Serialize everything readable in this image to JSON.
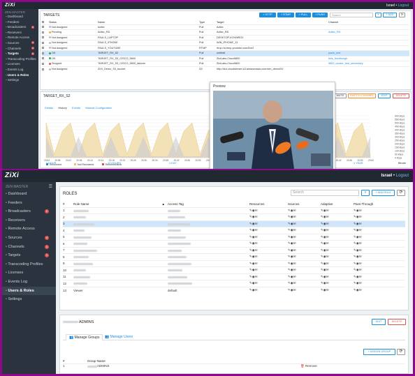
{
  "shotA": {
    "brand": "ZiXi",
    "sidebar_header": "ZEN MASTER",
    "user": "Israel",
    "logout": "Logout",
    "sidebar": [
      {
        "label": "Dashboard"
      },
      {
        "label": "Feeders"
      },
      {
        "label": "Broadcasters",
        "badge": "2"
      },
      {
        "label": "Receivers"
      },
      {
        "label": "Remote Access"
      },
      {
        "label": "Sources",
        "badge": "4"
      },
      {
        "label": "Channels",
        "badge": "1"
      },
      {
        "label": "Targets",
        "badge": "1"
      },
      {
        "label": "Transcoding Profiles"
      },
      {
        "label": "Licenses"
      },
      {
        "label": "Events Log"
      },
      {
        "label": "Users & Roles"
      },
      {
        "label": "Settings"
      }
    ],
    "targets_title": "TARGETS",
    "buttons": {
      "http": "+ HTTP",
      "rtmp": "+ RTMP",
      "pull": "+ PULL",
      "push": "+ PUSH",
      "add": "+ ADD"
    },
    "search_placeholder": "Search",
    "columns": [
      "Status",
      "Name",
      "Type",
      "Target",
      "Channel"
    ],
    "rows": [
      {
        "status": "Not Assigned",
        "name": "Adtec",
        "type": "Pull",
        "target": "Adtec",
        "channel": ""
      },
      {
        "status": "Pending",
        "name": "Adtec_RD",
        "type": "Pull",
        "target": "Adtec_RD",
        "channel": "Adtec_RD"
      },
      {
        "status": "Not Assigned",
        "name": "FAULS_LAPTOP",
        "type": "Pull",
        "target": "DESKTOP-KOVMRO0",
        "channel": ""
      },
      {
        "status": "Not Assigned",
        "name": "FAULS_IPHONE",
        "type": "Pull",
        "target": "WIN_IPHONE_13",
        "channel": ""
      },
      {
        "status": "Not Assigned",
        "name": "FAULS_YOUTUBE",
        "type": "RTMP",
        "target": "rtmp://a.rtmp.youtube.com/live2",
        "channel": ""
      },
      {
        "status": "OK",
        "name": "TARGET_RX_S2",
        "type": "Pull",
        "target": "unifiedI",
        "channel": "pauls_test"
      },
      {
        "status": "OK",
        "name": "TARGET_RX_S3_CISCO_5800",
        "type": "Pull",
        "target": "ZixiLabs-Cisco5800",
        "channel": "fulls_fixedhough"
      },
      {
        "status": "Stopped",
        "name": "TARGET_RX_S3_CISCO_5800_failover",
        "type": "Pull",
        "target": "ZixiLabs-Cisco5800",
        "channel": "5800_cluster_test_secondary"
      },
      {
        "status": "Not Assigned",
        "name": "ZIXI_Demo_S3_bucket",
        "type": "S3",
        "target": "http://zixi.cloudstream.s3.amazonaws.com/zen_demo03/",
        "channel": ""
      }
    ],
    "detail": {
      "title": "TARGET_RX_S2",
      "buttons": {
        "mute": "MUTE",
        "switch": "SWITCH CHANNEL",
        "edit": "EDIT",
        "delete": "DELETE"
      },
      "tabs": [
        "Details",
        "History",
        "Events",
        "Manual Configuration"
      ],
      "preview_label": "Preview",
      "y_ticks": [
        "600 kbps",
        "550 kbps",
        "500 kbps",
        "450 kbps",
        "400 kbps",
        "350 kbps",
        "300 kbps",
        "250 kbps",
        "200 kbps",
        "150 kbps",
        "100 kbps",
        "50 kbps",
        "0 kbps"
      ],
      "x_ticks": [
        "19:54",
        "19:58",
        "20:02",
        "20:06",
        "20:10",
        "20:14",
        "20:18",
        "20:22",
        "20:26",
        "20:30",
        "20:34",
        "20:38",
        "20:42",
        "20:46",
        "20:50",
        "20:54",
        "20:58",
        "20:02",
        "20:06",
        "20:10",
        "20:14",
        "20:18",
        "20:22",
        "20:26",
        "20:30",
        "20:34",
        "20:38",
        "20:42",
        "20:46",
        "20:50",
        "20:54"
      ],
      "legend": [
        "Recovered",
        "Not Recovered",
        "Reconnections"
      ],
      "ranges": [
        "1 HOUR",
        "12 HOURS",
        "1 DAY",
        "1 WEEK",
        "1 MONTH",
        "1 YEAR"
      ],
      "bitrate_label": "Bitrate"
    }
  },
  "shotB": {
    "brand": "ZiXi",
    "sidebar_header": "ZEN MASTER",
    "user": "Israel",
    "logout": "Logout",
    "sidebar": [
      {
        "label": "Dashboard"
      },
      {
        "label": "Feeders"
      },
      {
        "label": "Broadcasters",
        "badge": "2"
      },
      {
        "label": "Receivers"
      },
      {
        "label": "Remote Access"
      },
      {
        "label": "Sources",
        "badge": "4"
      },
      {
        "label": "Channels",
        "badge": "1"
      },
      {
        "label": "Targets",
        "badge": "1"
      },
      {
        "label": "Transcoding Profiles"
      },
      {
        "label": "Licenses"
      },
      {
        "label": "Events Log"
      },
      {
        "label": "Users & Roles"
      },
      {
        "label": "Settings"
      }
    ],
    "roles_title": "ROLES",
    "search_placeholder": "Search",
    "add_role": "+ ADD ROLE",
    "columns": [
      "#",
      "Role Name",
      "Access Tag",
      "Resources",
      "Sources",
      "Adaptive",
      "Pass-Through"
    ],
    "rows": [
      {
        "n": "1",
        "name": "",
        "tag": ""
      },
      {
        "n": "2",
        "name": "",
        "tag": ""
      },
      {
        "n": "3",
        "name": "",
        "tag": ""
      },
      {
        "n": "4",
        "name": "",
        "tag": ""
      },
      {
        "n": "5",
        "name": "",
        "tag": ""
      },
      {
        "n": "6",
        "name": "",
        "tag": ""
      },
      {
        "n": "7",
        "name": "",
        "tag": ""
      },
      {
        "n": "8",
        "name": "",
        "tag": ""
      },
      {
        "n": "9",
        "name": "",
        "tag": ""
      },
      {
        "n": "10",
        "name": "",
        "tag": ""
      },
      {
        "n": "11",
        "name": "",
        "tag": ""
      },
      {
        "n": "12",
        "name": "",
        "tag": ""
      },
      {
        "n": "13",
        "name": "Viewer",
        "tag": "default"
      }
    ],
    "admins_title": "ADMINS",
    "edit": "EDIT",
    "delete": "DELETE",
    "tab_groups": "Manage Groups",
    "tab_users": "Manage Users",
    "assign_group": "+ ASSIGN GROUP",
    "group_cols": [
      "#",
      "Group Name"
    ],
    "group_rows": [
      {
        "n": "1",
        "name": "ADMINS",
        "action": "Remove"
      }
    ]
  },
  "colors": {
    "accent": "#1c8ee0",
    "sidebar": "#2b333e",
    "topbar": "#202932",
    "ok": "#2ea84a",
    "stopped": "#d9534f",
    "pending": "#f0ad4e",
    "border": "#8a0a8a"
  }
}
